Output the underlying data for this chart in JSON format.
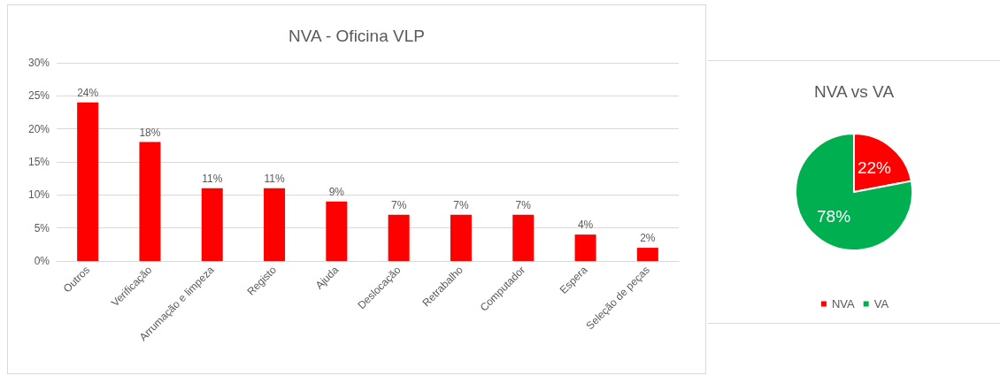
{
  "chart_data": [
    {
      "type": "bar",
      "title": "NVA - Oficina VLP",
      "categories": [
        "Outros",
        "Verificação",
        "Arrumação e limpeza",
        "Registo",
        "Ajuda",
        "Deslocação",
        "Retrabalho",
        "Computador",
        "Espera",
        "Seleção de peças"
      ],
      "values": [
        24,
        18,
        11,
        11,
        9,
        7,
        7,
        7,
        4,
        2
      ],
      "value_labels": [
        "24%",
        "18%",
        "11%",
        "11%",
        "9%",
        "7%",
        "7%",
        "7%",
        "4%",
        "2%"
      ],
      "color": "#ff0000",
      "ylim": [
        0,
        30
      ],
      "yticks": [
        {
          "value": 0,
          "label": "0%"
        },
        {
          "value": 5,
          "label": "5%"
        },
        {
          "value": 10,
          "label": "10%"
        },
        {
          "value": 15,
          "label": "15%"
        },
        {
          "value": 20,
          "label": "20%"
        },
        {
          "value": 25,
          "label": "25%"
        },
        {
          "value": 30,
          "label": "30%"
        }
      ],
      "grid": "y",
      "legend": false
    },
    {
      "type": "pie",
      "title": "NVA vs VA",
      "categories": [
        "NVA",
        "VA"
      ],
      "values": [
        22,
        78
      ],
      "colors": [
        "#ff0000",
        "#00b050"
      ],
      "value_labels": [
        "22%",
        "78%"
      ],
      "legend": "bottom"
    }
  ]
}
